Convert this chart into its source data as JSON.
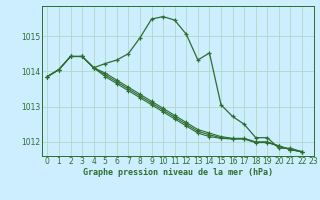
{
  "title": "Graphe pression niveau de la mer (hPa)",
  "background_color": "#cceeff",
  "grid_color": "#b0d8c8",
  "line_color": "#2d6e2d",
  "xlim": [
    -0.5,
    23
  ],
  "ylim": [
    1011.6,
    1015.85
  ],
  "yticks": [
    1012,
    1013,
    1014,
    1015
  ],
  "xticks": [
    0,
    1,
    2,
    3,
    4,
    5,
    6,
    7,
    8,
    9,
    10,
    11,
    12,
    13,
    14,
    15,
    16,
    17,
    18,
    19,
    20,
    21,
    22,
    23
  ],
  "series": [
    [
      1013.85,
      1014.05,
      1014.42,
      1014.42,
      1014.1,
      1014.22,
      1014.32,
      1014.5,
      1014.95,
      1015.48,
      1015.55,
      1015.45,
      1015.05,
      1014.32,
      1014.52,
      1013.05,
      1012.72,
      1012.5,
      1012.12,
      1012.12,
      1011.82,
      1011.82,
      1011.72
    ],
    [
      1013.85,
      1014.05,
      1014.42,
      1014.42,
      1014.1,
      1013.95,
      1013.75,
      1013.55,
      1013.35,
      1013.15,
      1012.95,
      1012.75,
      1012.55,
      1012.35,
      1012.25,
      1012.15,
      1012.1,
      1012.1,
      1012.0,
      1012.0,
      1011.88,
      1011.78,
      1011.72
    ],
    [
      1013.85,
      1014.05,
      1014.42,
      1014.42,
      1014.1,
      1013.85,
      1013.65,
      1013.45,
      1013.25,
      1013.05,
      1012.85,
      1012.65,
      1012.45,
      1012.25,
      1012.15,
      1012.1,
      1012.08,
      1012.08,
      1011.98,
      1011.98,
      1011.88,
      1011.78,
      1011.72
    ],
    [
      1013.85,
      1014.05,
      1014.42,
      1014.42,
      1014.1,
      1013.9,
      1013.7,
      1013.5,
      1013.3,
      1013.1,
      1012.9,
      1012.7,
      1012.5,
      1012.3,
      1012.2,
      1012.12,
      1012.09,
      1012.09,
      1011.99,
      1011.99,
      1011.89,
      1011.78,
      1011.72
    ]
  ]
}
